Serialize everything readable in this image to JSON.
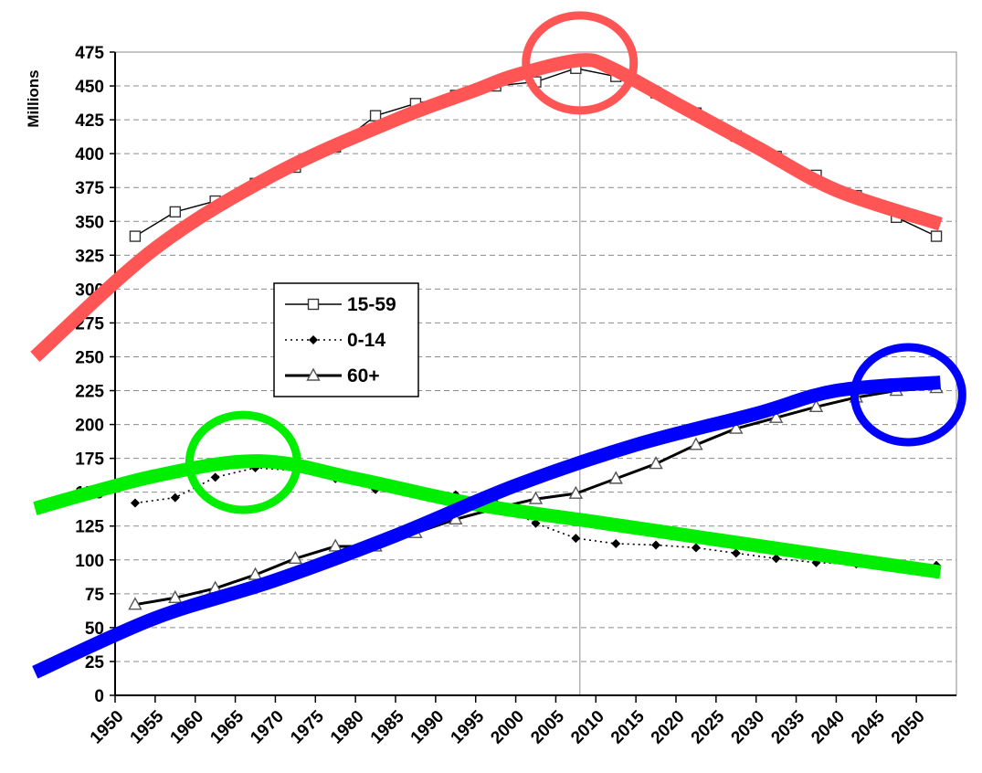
{
  "chart_data": {
    "type": "line",
    "ylabel": "Millions",
    "xlabel": "",
    "ylim": [
      0,
      475
    ],
    "yticks": [
      0,
      25,
      50,
      75,
      100,
      125,
      150,
      175,
      200,
      225,
      250,
      275,
      300,
      325,
      350,
      375,
      400,
      425,
      450,
      475
    ],
    "categories": [
      "1950",
      "1955",
      "1960",
      "1965",
      "1970",
      "1975",
      "1980",
      "1985",
      "1990",
      "1995",
      "2000",
      "2005",
      "2010",
      "2015",
      "2020",
      "2025",
      "2030",
      "2035",
      "2040",
      "2045",
      "2050"
    ],
    "grid": "horizontal dashed",
    "reference_line_year": "2008",
    "series": [
      {
        "name": "15-59",
        "marker": "open-square",
        "line": "thin-solid",
        "color": "#000000",
        "x": [
          1952.5,
          1957.5,
          1962.5,
          1967.5,
          1972.5,
          1977.5,
          1982.5,
          1987.5,
          1992.5,
          1997.5,
          2002.5,
          2007.5,
          2012.5,
          2017.5,
          2022.5,
          2027.5,
          2032.5,
          2037.5,
          2042.5,
          2047.5,
          2052.5
        ],
        "values": [
          339,
          357,
          365,
          378,
          390,
          405,
          428,
          437,
          443,
          450,
          453,
          463,
          457,
          445,
          430,
          413,
          398,
          384,
          369,
          353,
          339
        ]
      },
      {
        "name": "0-14",
        "marker": "filled-diamond",
        "line": "dotted",
        "color": "#000000",
        "x": [
          1952.5,
          1957.5,
          1962.5,
          1967.5,
          1972.5,
          1977.5,
          1982.5,
          1987.5,
          1992.5,
          1997.5,
          2002.5,
          2007.5,
          2012.5,
          2017.5,
          2022.5,
          2027.5,
          2032.5,
          2037.5,
          2042.5,
          2047.5,
          2052.5
        ],
        "values": [
          142,
          146,
          161,
          168,
          166,
          160,
          152,
          150,
          148,
          142,
          127,
          116,
          112,
          111,
          109,
          105,
          101,
          98,
          97,
          96,
          96
        ]
      },
      {
        "name": "60+",
        "marker": "open-triangle",
        "line": "thick-solid",
        "color": "#000000",
        "x": [
          1952.5,
          1957.5,
          1962.5,
          1967.5,
          1972.5,
          1977.5,
          1982.5,
          1987.5,
          1992.5,
          1997.5,
          2002.5,
          2007.5,
          2012.5,
          2017.5,
          2022.5,
          2027.5,
          2032.5,
          2037.5,
          2042.5,
          2047.5,
          2052.5
        ],
        "values": [
          67,
          72,
          79,
          89,
          101,
          110,
          110,
          120,
          130,
          138,
          145,
          149,
          160,
          171,
          185,
          197,
          205,
          213,
          220,
          225,
          227
        ]
      }
    ],
    "annotations": {
      "trend_curves": [
        {
          "color": "#ff5555",
          "x": [
            1940,
            1955,
            1970,
            1985,
            1995,
            2000,
            2008,
            2012,
            2020,
            2030,
            2040,
            2053
          ],
          "values": [
            250,
            330,
            385,
            425,
            447,
            458,
            469,
            463,
            437,
            405,
            373,
            348
          ]
        },
        {
          "color": "#00ee00",
          "x": [
            1940,
            1955,
            1968,
            1980,
            1995,
            2010,
            2025,
            2040,
            2053
          ],
          "values": [
            138,
            162,
            173,
            160,
            141,
            128,
            115,
            102,
            91
          ]
        },
        {
          "color": "#0000ff",
          "x": [
            1940,
            1955,
            1970,
            1985,
            2000,
            2015,
            2030,
            2040,
            2053
          ],
          "values": [
            17,
            57,
            85,
            118,
            155,
            185,
            208,
            225,
            231
          ]
        }
      ],
      "circles": [
        {
          "color": "#ff5555",
          "x": 2008,
          "y": 467
        },
        {
          "color": "#00ee00",
          "x": 1966,
          "y": 172
        },
        {
          "color": "#0000ff",
          "x": 2049,
          "y": 222
        }
      ]
    }
  }
}
